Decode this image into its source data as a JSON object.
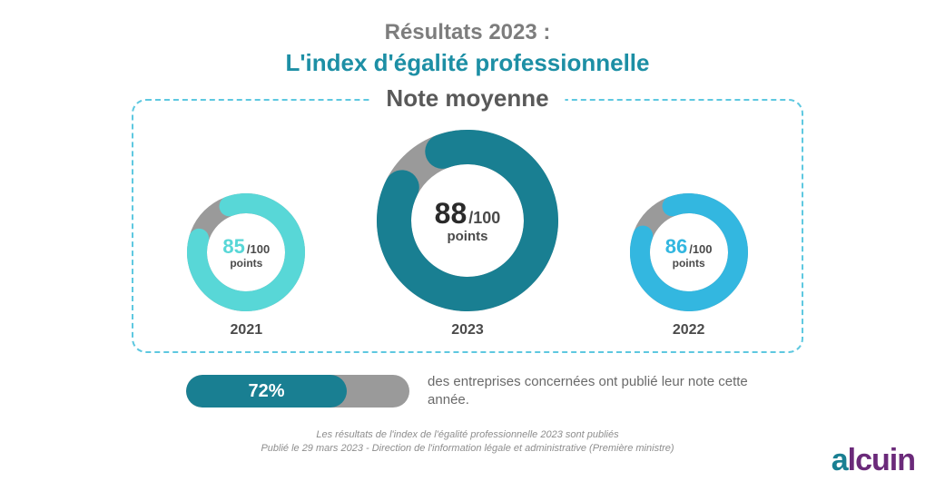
{
  "header": {
    "title_line1": "Résultats 2023 :",
    "title_line2": "L'index d'égalité professionnelle"
  },
  "panel": {
    "title": "Note moyenne",
    "border_color": "#5ec8e0",
    "donuts": [
      {
        "year": "2021",
        "value": 85,
        "max": 100,
        "unit": "points",
        "size": "small",
        "ring_color": "#58d7d7",
        "empty_color": "#9a9a9a",
        "value_color": "#58d7d7",
        "thickness": 22
      },
      {
        "year": "2023",
        "value": 88,
        "max": 100,
        "unit": "points",
        "size": "large",
        "ring_color": "#197f92",
        "empty_color": "#9a9a9a",
        "value_color": "#2a2a2a",
        "thickness": 38
      },
      {
        "year": "2022",
        "value": 86,
        "max": 100,
        "unit": "points",
        "size": "small",
        "ring_color": "#33b7e0",
        "empty_color": "#9a9a9a",
        "value_color": "#33b7e0",
        "thickness": 22
      }
    ]
  },
  "stat": {
    "percent": 72,
    "percent_label": "72%",
    "bar_fill_color": "#197f92",
    "bar_bg_color": "#9a9a9a",
    "text": "des entreprises concernées ont publié leur note cette année."
  },
  "footnote": {
    "line1": "Les résultats de l'index de l'égalité professionnelle 2023 sont publiés",
    "line2": "Publié le 29 mars 2023 - Direction de l'information légale et administrative (Première ministre)"
  },
  "logo": {
    "text_accent": "a",
    "text_rest": "lcuin",
    "accent_color": "#197f92",
    "rest_color": "#6b2a7a"
  },
  "colors": {
    "title_grey": "#7d7d7d",
    "title_teal": "#1d8fa5",
    "text_grey": "#6a6a6a",
    "background": "#ffffff"
  }
}
